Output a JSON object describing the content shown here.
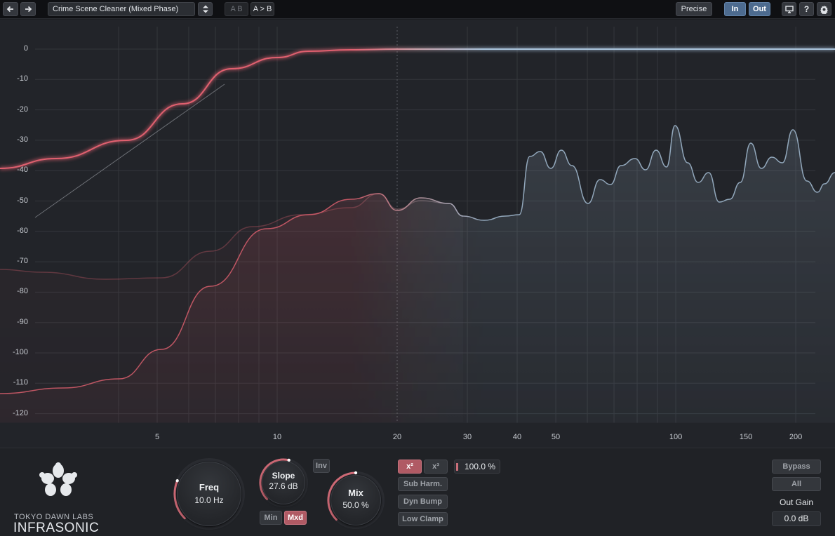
{
  "toolbar": {
    "preset_name": "Crime Scene Cleaner (Mixed Phase)",
    "ab_label": "A B",
    "ab_copy_label": "A > B",
    "precise_label": "Precise",
    "in_label": "In",
    "out_label": "Out",
    "help_label": "?"
  },
  "graph": {
    "y_ticks": [
      "0",
      "-10",
      "-20",
      "-30",
      "-40",
      "-50",
      "-60",
      "-70",
      "-80",
      "-90",
      "-100",
      "-110",
      "-120"
    ],
    "x_ticks": [
      "5",
      "10",
      "20",
      "30",
      "40",
      "50",
      "100",
      "150",
      "200"
    ],
    "colors": {
      "low": "#e0606f",
      "high": "#a9c3da",
      "background": "#222429"
    }
  },
  "controls": {
    "brand_top": "TOKYO DAWN LABS",
    "brand_name": "INFRASONIC",
    "freq": {
      "label": "Freq",
      "value": "10.0 Hz",
      "level": 0.25
    },
    "slope": {
      "label": "Slope",
      "value": "27.6 dB",
      "level": 0.55
    },
    "mix": {
      "label": "Mix",
      "value": "50.0 %",
      "level": 0.5
    },
    "inv_label": "Inv",
    "min_label": "Min",
    "mxd_label": "Mxd",
    "x2_label": "x²",
    "x3_label": "x³",
    "amount_value": "100.0 %",
    "sub_harm_label": "Sub Harm.",
    "dyn_bump_label": "Dyn Bump",
    "low_clamp_label": "Low Clamp",
    "bypass_label": "Bypass",
    "all_label": "All",
    "out_gain_label": "Out Gain",
    "out_gain_value": "0.0 dB"
  }
}
